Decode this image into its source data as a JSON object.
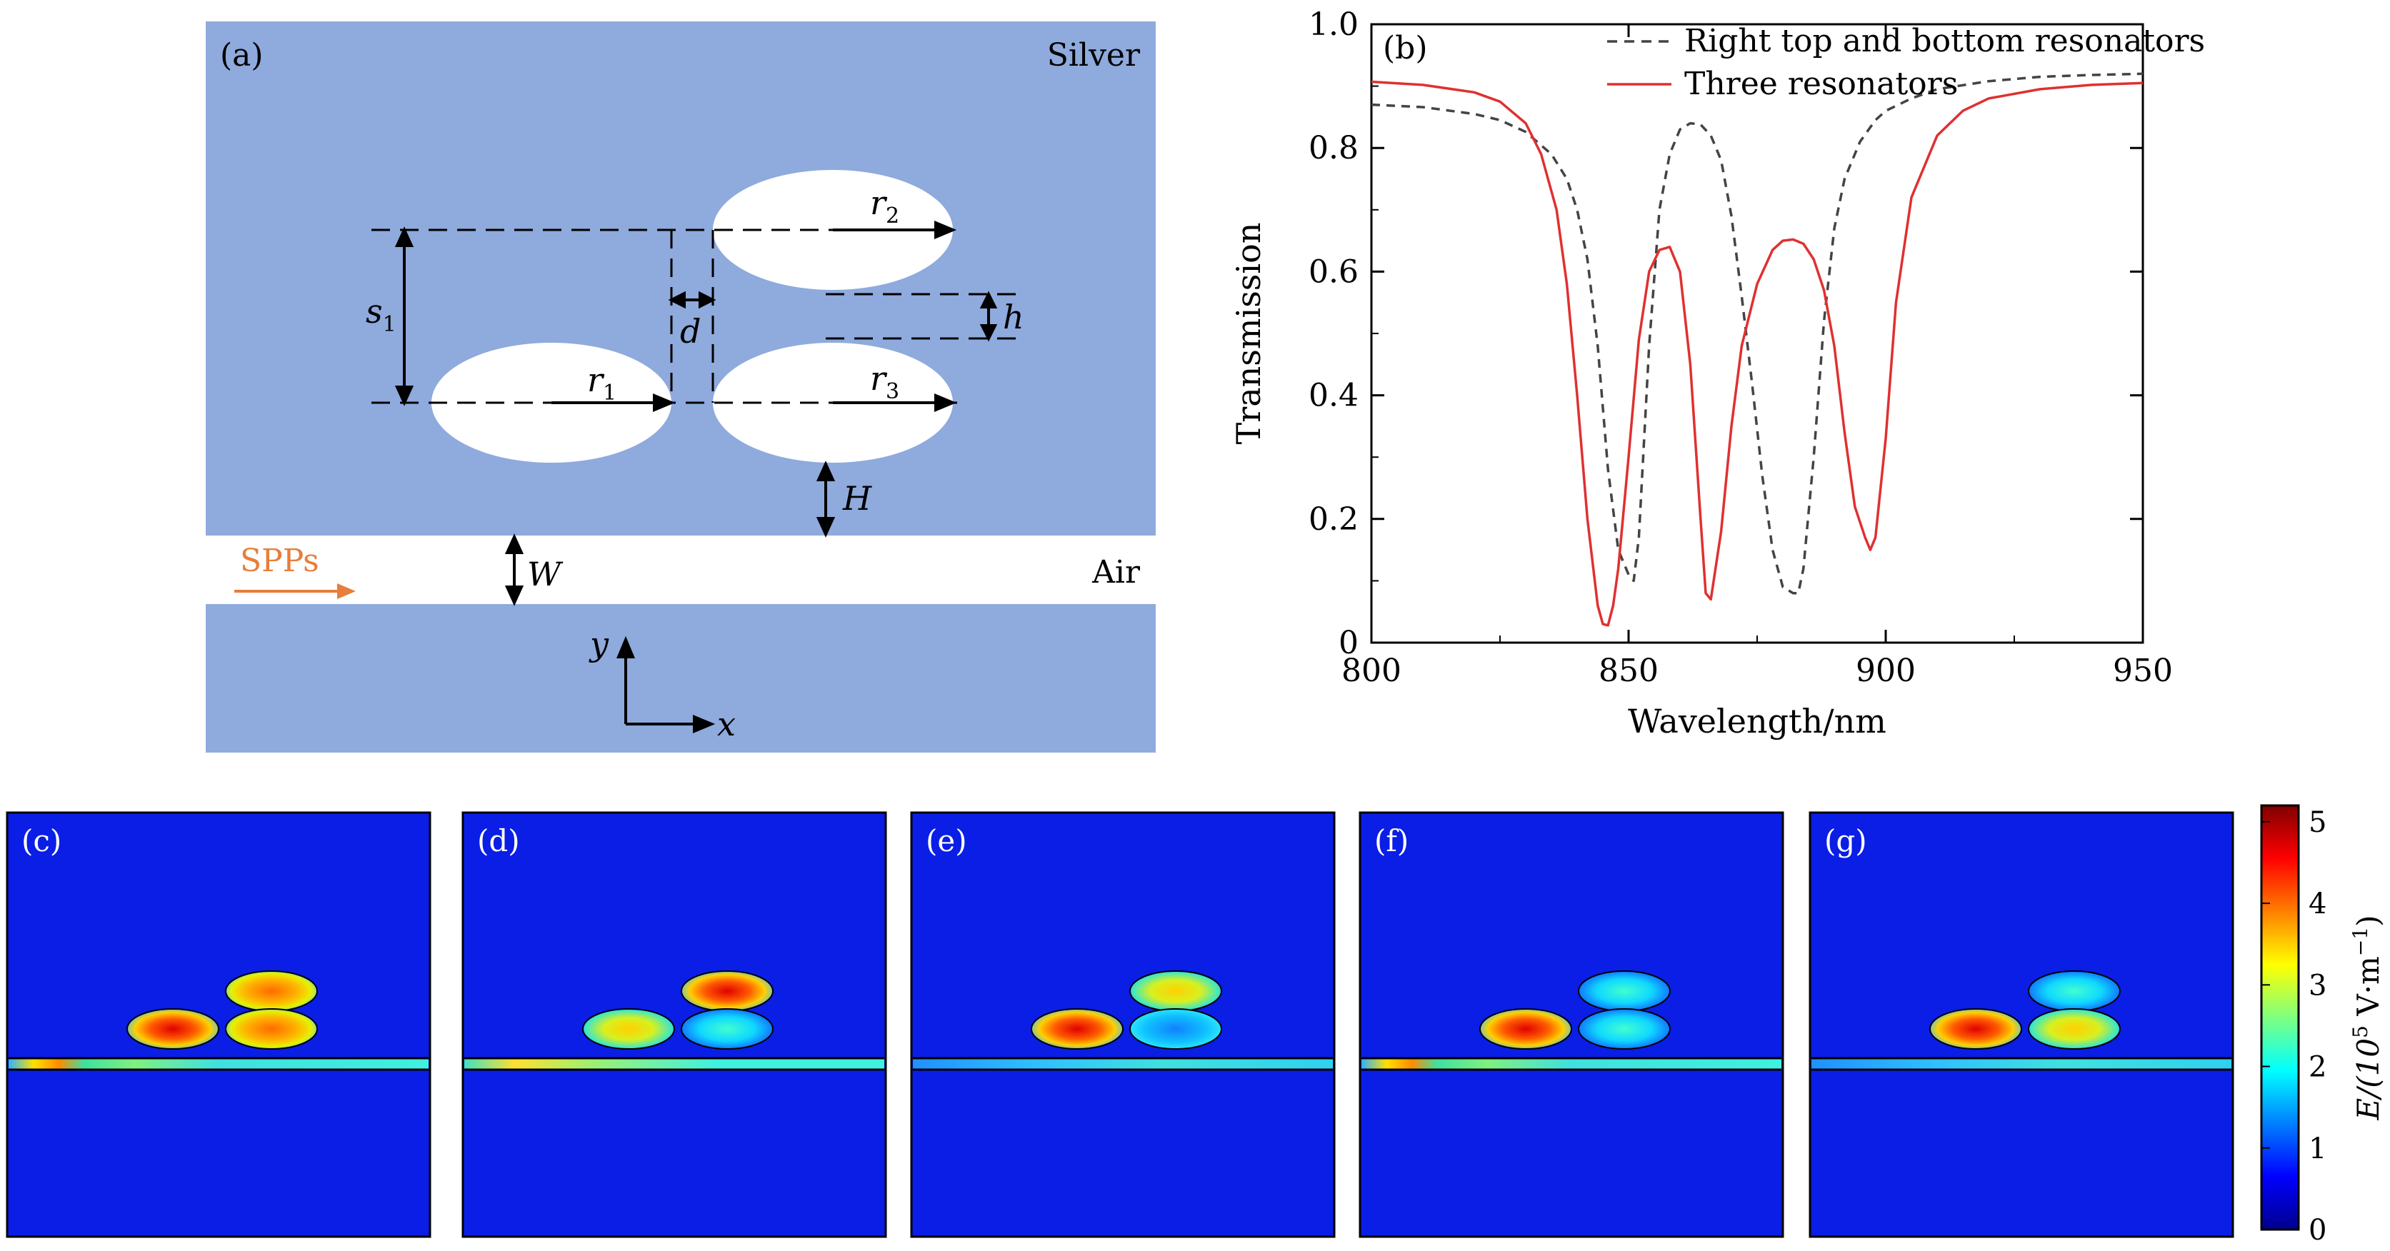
{
  "panel_a": {
    "tag": "(a)",
    "material_label": "Silver",
    "air_label": "Air",
    "source_label": "SPPs",
    "dimension_labels": {
      "s1": "s",
      "s1_sub": "1",
      "d": "d",
      "h": "h",
      "H": "H",
      "W": "W",
      "r1": "r",
      "r1_sub": "1",
      "r2": "r",
      "r2_sub": "2",
      "r3": "r",
      "r3_sub": "3"
    },
    "axes": {
      "x": "x",
      "y": "y"
    },
    "colors": {
      "silver": "#8faadc",
      "air": "#ffffff",
      "source_arrow": "#e67e3c"
    }
  },
  "chart_data": {
    "type": "line",
    "tag": "(b)",
    "xlabel": "Wavelength/nm",
    "ylabel": "Transmission",
    "xlim": [
      800,
      950
    ],
    "ylim": [
      0,
      1.0
    ],
    "xticks": [
      "800",
      "850",
      "900",
      "950"
    ],
    "yticks": [
      "0",
      "0.2",
      "0.4",
      "0.6",
      "0.8",
      "1.0"
    ],
    "legend_position": "top-right",
    "series": [
      {
        "name": "Right top and bottom resonators",
        "style": "dashed",
        "color": "#444444",
        "x": [
          800,
          810,
          820,
          825,
          830,
          835,
          838,
          840,
          842,
          844,
          846,
          848,
          850,
          851,
          852,
          854,
          856,
          858,
          860,
          862,
          864,
          866,
          868,
          870,
          872,
          874,
          876,
          878,
          880,
          882,
          883,
          884,
          886,
          888,
          890,
          892,
          895,
          898,
          900,
          905,
          910,
          920,
          930,
          940,
          950
        ],
        "y": [
          0.87,
          0.866,
          0.855,
          0.845,
          0.826,
          0.79,
          0.75,
          0.7,
          0.62,
          0.48,
          0.28,
          0.15,
          0.11,
          0.1,
          0.17,
          0.48,
          0.7,
          0.79,
          0.83,
          0.84,
          0.838,
          0.82,
          0.78,
          0.69,
          0.56,
          0.42,
          0.27,
          0.15,
          0.09,
          0.08,
          0.08,
          0.12,
          0.3,
          0.52,
          0.67,
          0.75,
          0.81,
          0.845,
          0.86,
          0.88,
          0.895,
          0.908,
          0.915,
          0.918,
          0.92
        ]
      },
      {
        "name": "Three resonators",
        "style": "solid",
        "color": "#e03030",
        "x": [
          800,
          810,
          820,
          825,
          830,
          833,
          836,
          838,
          840,
          842,
          844,
          845,
          846,
          847,
          848,
          850,
          852,
          854,
          856,
          858,
          860,
          862,
          864,
          865,
          866,
          868,
          870,
          872,
          875,
          878,
          880,
          882,
          884,
          886,
          888,
          890,
          892,
          894,
          896,
          897,
          898,
          900,
          902,
          905,
          910,
          915,
          920,
          930,
          940,
          950
        ],
        "y": [
          0.907,
          0.902,
          0.89,
          0.875,
          0.84,
          0.79,
          0.7,
          0.58,
          0.4,
          0.2,
          0.06,
          0.03,
          0.028,
          0.06,
          0.12,
          0.3,
          0.49,
          0.6,
          0.635,
          0.64,
          0.6,
          0.45,
          0.2,
          0.08,
          0.07,
          0.18,
          0.35,
          0.48,
          0.58,
          0.635,
          0.65,
          0.652,
          0.645,
          0.62,
          0.57,
          0.48,
          0.34,
          0.22,
          0.17,
          0.15,
          0.17,
          0.33,
          0.55,
          0.72,
          0.82,
          0.86,
          0.88,
          0.895,
          0.902,
          0.905
        ]
      }
    ]
  },
  "field_maps": {
    "tags": [
      "(c)",
      "(d)",
      "(e)",
      "(f)",
      "(g)"
    ],
    "colorbar": {
      "label": "E/(10",
      "label_exp": "5",
      "label_unit": " V·m",
      "label_unit_exp": "−1",
      "label_close": ")",
      "ticks": [
        "0",
        "1",
        "2",
        "3",
        "4",
        "5"
      ]
    }
  }
}
